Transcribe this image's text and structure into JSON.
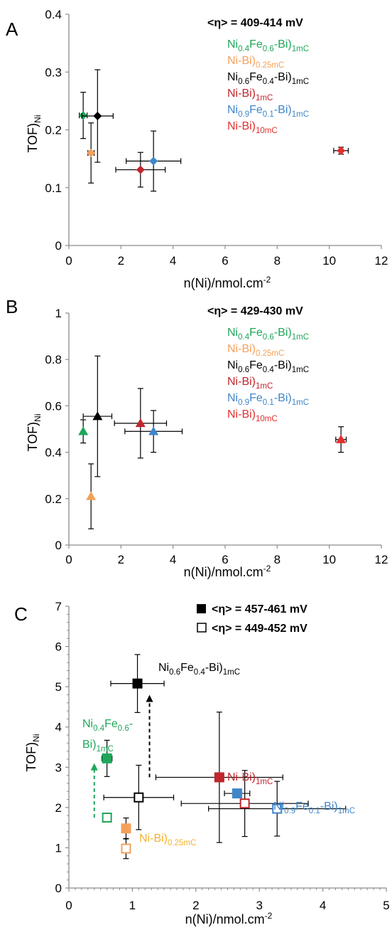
{
  "colors": {
    "green": "#1fa65a",
    "orange": "#f5a05a",
    "black": "#000000",
    "darkred": "#c0262c",
    "blue": "#3f86c9",
    "red": "#e32f2f",
    "gold": "#f2b231",
    "axis": "#8c8c8c"
  },
  "chart_data": [
    {
      "type": "scatter",
      "panel": "A",
      "xlabel": "n(Ni)/nmol.cm",
      "xlabel_sup": "-2",
      "ylabel": "TOF)",
      "ylabel_sub": "Ni",
      "xlim": [
        0,
        12
      ],
      "ylim": [
        0,
        0.4
      ],
      "xticks": [
        0,
        2,
        4,
        6,
        8,
        10,
        12
      ],
      "yticks": [
        "0",
        "0.1",
        "0.2",
        "0.3",
        "0.4"
      ],
      "annotation": "<η> = 409-414 mV",
      "legend": [
        {
          "parts": [
            [
              "Ni",
              ""
            ],
            [
              "0.4",
              "sub"
            ],
            [
              "Fe",
              ""
            ],
            [
              "0.6",
              "sub"
            ],
            [
              "-Bi)",
              ""
            ],
            [
              "1mC",
              "sub"
            ]
          ],
          "color": "green"
        },
        {
          "parts": [
            [
              "Ni-Bi)",
              ""
            ],
            [
              "0.25mC",
              "sub"
            ]
          ],
          "color": "orange"
        },
        {
          "parts": [
            [
              "Ni",
              ""
            ],
            [
              "0.6",
              "sub"
            ],
            [
              "Fe",
              ""
            ],
            [
              "0.4",
              "sub"
            ],
            [
              "-Bi)",
              ""
            ],
            [
              "1mC",
              "sub"
            ]
          ],
          "color": "black"
        },
        {
          "parts": [
            [
              "Ni-Bi)",
              ""
            ],
            [
              "1mC",
              "sub"
            ]
          ],
          "color": "darkred"
        },
        {
          "parts": [
            [
              "Ni",
              ""
            ],
            [
              "0.9",
              "sub"
            ],
            [
              "Fe",
              ""
            ],
            [
              "0.1",
              "sub"
            ],
            [
              "-Bi)",
              ""
            ],
            [
              "1mC",
              "sub"
            ]
          ],
          "color": "blue"
        },
        {
          "parts": [
            [
              "Ni-Bi)",
              ""
            ],
            [
              "10mC",
              "sub"
            ]
          ],
          "color": "red"
        }
      ],
      "points": [
        {
          "series": "Ni0.4Fe0.6-Bi)1mC",
          "x": 0.55,
          "y": 0.225,
          "xerr": 0.15,
          "yerr": 0.04,
          "color": "green",
          "marker": "diamond"
        },
        {
          "series": "Ni-Bi)0.25mC",
          "x": 0.85,
          "y": 0.16,
          "xerr": 0.12,
          "yerr": 0.052,
          "color": "orange",
          "marker": "diamond"
        },
        {
          "series": "Ni0.6Fe0.4-Bi)1mC",
          "x": 1.1,
          "y": 0.224,
          "xerr": 0.6,
          "yerr": 0.08,
          "color": "black",
          "marker": "diamond"
        },
        {
          "series": "Ni-Bi)1mC",
          "x": 2.75,
          "y": 0.131,
          "xerr": 0.95,
          "yerr": 0.03,
          "color": "darkred",
          "marker": "diamond"
        },
        {
          "series": "Ni0.9Fe0.1-Bi)1mC",
          "x": 3.25,
          "y": 0.146,
          "xerr": 1.05,
          "yerr": 0.052,
          "color": "blue",
          "marker": "diamond"
        },
        {
          "series": "Ni-Bi)10mC",
          "x": 10.45,
          "y": 0.164,
          "xerr": 0.28,
          "yerr": 0.006,
          "color": "red",
          "marker": "diamond"
        }
      ]
    },
    {
      "type": "scatter",
      "panel": "B",
      "xlabel": "n(Ni)/nmol.cm",
      "xlabel_sup": "-2",
      "ylabel": "TOF)",
      "ylabel_sub": "Ni",
      "xlim": [
        0,
        12
      ],
      "ylim": [
        0,
        1
      ],
      "xticks": [
        0,
        2,
        4,
        6,
        8,
        10,
        12
      ],
      "yticks": [
        "0",
        "0.2",
        "0.4",
        "0.6",
        "0.8",
        "1"
      ],
      "annotation": "<η> = 429-430 mV",
      "legend": [
        {
          "parts": [
            [
              "Ni",
              ""
            ],
            [
              "0.4",
              "sub"
            ],
            [
              "Fe",
              ""
            ],
            [
              "0.6",
              "sub"
            ],
            [
              "-Bi)",
              ""
            ],
            [
              "1mC",
              "sub"
            ]
          ],
          "color": "green"
        },
        {
          "parts": [
            [
              "Ni-Bi)",
              ""
            ],
            [
              "0.25mC",
              "sub"
            ]
          ],
          "color": "orange"
        },
        {
          "parts": [
            [
              "Ni",
              ""
            ],
            [
              "0.6",
              "sub"
            ],
            [
              "Fe",
              ""
            ],
            [
              "0.4",
              "sub"
            ],
            [
              "-Bi)",
              ""
            ],
            [
              "1mC",
              "sub"
            ]
          ],
          "color": "black"
        },
        {
          "parts": [
            [
              "Ni-Bi)",
              ""
            ],
            [
              "1mC",
              "sub"
            ]
          ],
          "color": "darkred"
        },
        {
          "parts": [
            [
              "Ni",
              ""
            ],
            [
              "0.9",
              "sub"
            ],
            [
              "Fe",
              ""
            ],
            [
              "0.1",
              "sub"
            ],
            [
              "-Bi)",
              ""
            ],
            [
              "1mC",
              "sub"
            ]
          ],
          "color": "blue"
        },
        {
          "parts": [
            [
              "Ni-Bi)",
              ""
            ],
            [
              "10mC",
              "sub"
            ]
          ],
          "color": "red"
        }
      ],
      "points": [
        {
          "series": "Ni0.4Fe0.6-Bi)1mC",
          "x": 0.55,
          "y": 0.49,
          "xerr": 0.0,
          "yerr": 0.05,
          "color": "green",
          "marker": "triangle"
        },
        {
          "series": "Ni-Bi)0.25mC",
          "x": 0.85,
          "y": 0.21,
          "xerr": 0.0,
          "yerr": 0.14,
          "color": "orange",
          "marker": "triangle"
        },
        {
          "series": "Ni0.6Fe0.4-Bi)1mC",
          "x": 1.1,
          "y": 0.555,
          "xerr": 0.55,
          "yerr": 0.26,
          "color": "black",
          "marker": "triangle"
        },
        {
          "series": "Ni-Bi)1mC",
          "x": 2.75,
          "y": 0.525,
          "xerr": 1.0,
          "yerr": 0.15,
          "color": "darkred",
          "marker": "triangle"
        },
        {
          "series": "Ni0.9Fe0.1-Bi)1mC",
          "x": 3.25,
          "y": 0.49,
          "xerr": 1.1,
          "yerr": 0.09,
          "color": "blue",
          "marker": "triangle"
        },
        {
          "series": "Ni-Bi)10mC",
          "x": 10.45,
          "y": 0.455,
          "xerr": 0.2,
          "yerr": 0.055,
          "color": "red",
          "marker": "triangle"
        }
      ]
    },
    {
      "type": "scatter",
      "panel": "C",
      "xlabel": "n(Ni)/nmol.cm",
      "xlabel_sup": "-2",
      "ylabel": "TOF)",
      "ylabel_sub": "Ni",
      "xlim": [
        0,
        5
      ],
      "ylim": [
        0,
        7
      ],
      "xticks": [
        0,
        1,
        2,
        3,
        4,
        5
      ],
      "yticks": [
        "0",
        "1",
        "2",
        "3",
        "4",
        "5",
        "6",
        "7"
      ],
      "legend_filled": "<η> = 457-461 mV",
      "legend_open": "<η> = 449-452 mV",
      "labels": [
        {
          "parts": [
            [
              "Ni",
              ""
            ],
            [
              "0.6",
              "sub"
            ],
            [
              "Fe",
              ""
            ],
            [
              "0.4",
              "sub"
            ],
            [
              "-Bi)",
              ""
            ],
            [
              "1mC",
              "sub"
            ]
          ],
          "color": "black"
        },
        {
          "parts": [
            [
              "Ni",
              ""
            ],
            [
              "0.4",
              "sub"
            ],
            [
              "Fe",
              ""
            ],
            [
              "0.6",
              "sub"
            ],
            [
              "-",
              ""
            ]
          ],
          "color": "green"
        },
        {
          "parts": [
            [
              "Bi)",
              ""
            ],
            [
              "1mC",
              "sub"
            ]
          ],
          "color": "green"
        },
        {
          "parts": [
            [
              "Ni-Bi)",
              ""
            ],
            [
              "1mC",
              "sub"
            ]
          ],
          "color": "darkred"
        },
        {
          "parts": [
            [
              "Ni",
              ""
            ],
            [
              "0.9",
              "sub"
            ],
            [
              "Fe",
              ""
            ],
            [
              "0.1",
              "sub"
            ],
            [
              "-Bi)",
              ""
            ],
            [
              "1mC",
              "sub"
            ]
          ],
          "color": "blue"
        },
        {
          "parts": [
            [
              "Ni-Bi)",
              ""
            ],
            [
              "0.25mC",
              "sub"
            ]
          ],
          "color": "gold"
        }
      ],
      "points": [
        {
          "series": "Ni0.6Fe0.4-Bi)1mC",
          "set": "457-461 mV",
          "x": 1.08,
          "y": 5.08,
          "xerr": 0.42,
          "yerr": 0.72,
          "color": "black",
          "filled": true
        },
        {
          "series": "Ni0.4Fe0.6-Bi)1mC",
          "set": "457-461 mV",
          "x": 0.6,
          "y": 3.22,
          "xerr": 0.08,
          "yerr": 0.45,
          "color": "green",
          "filled": true
        },
        {
          "series": "Ni-Bi)1mC",
          "set": "457-461 mV",
          "x": 2.37,
          "y": 2.75,
          "xerr": 1.0,
          "yerr": 1.62,
          "color": "darkred",
          "filled": true
        },
        {
          "series": "Ni0.9Fe0.1-Bi)1mC",
          "set": "457-461 mV",
          "x": 2.65,
          "y": 2.35,
          "xerr": 0.2,
          "yerr": 0.0,
          "color": "blue",
          "filled": true
        },
        {
          "series": "Ni-Bi)0.25mC",
          "set": "457-461 mV",
          "x": 0.9,
          "y": 1.48,
          "xerr": 0.06,
          "yerr": 0.26,
          "color": "orange",
          "filled": true
        },
        {
          "series": "Ni0.6Fe0.4-Bi)1mC",
          "set": "449-452 mV",
          "x": 1.1,
          "y": 2.25,
          "xerr": 0.55,
          "yerr": 0.8,
          "color": "black",
          "filled": false
        },
        {
          "series": "Ni0.4Fe0.6-Bi)1mC",
          "set": "449-452 mV",
          "x": 0.6,
          "y": 1.75,
          "xerr": 0.0,
          "yerr": 0.0,
          "color": "green",
          "filled": false
        },
        {
          "series": "Ni-Bi)1mC",
          "set": "449-452 mV",
          "x": 2.77,
          "y": 2.1,
          "xerr": 1.0,
          "yerr": 0.82,
          "color": "darkred",
          "filled": false
        },
        {
          "series": "Ni0.9Fe0.1-Bi)1mC",
          "set": "449-452 mV",
          "x": 3.28,
          "y": 1.97,
          "xerr": 1.08,
          "yerr": 0.68,
          "color": "blue",
          "filled": false
        },
        {
          "series": "Ni-Bi)0.25mC",
          "set": "449-452 mV",
          "x": 0.9,
          "y": 0.98,
          "xerr": 0.06,
          "yerr": 0.25,
          "color": "orange",
          "filled": false
        }
      ],
      "arrows": [
        {
          "x": 1.27,
          "y_from": 2.75,
          "y_to": 4.8,
          "color": "black"
        },
        {
          "x": 0.4,
          "y_from": 1.75,
          "y_to": 3.1,
          "color": "green"
        }
      ]
    }
  ]
}
